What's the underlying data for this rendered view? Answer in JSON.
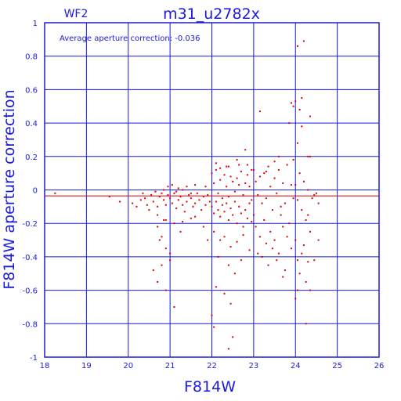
{
  "chart_data": {
    "type": "scatter",
    "panel_label": "WF2",
    "title": "m31_u2782x",
    "annotation": "Average aperture correction: -0.036",
    "xlabel": "F814W",
    "ylabel": "F814W aperture correction",
    "xlim": [
      18,
      26
    ],
    "ylim": [
      -1,
      1
    ],
    "xticks": [
      18,
      19,
      20,
      21,
      22,
      23,
      24,
      25,
      26
    ],
    "yticks": [
      -1,
      -0.8,
      -0.6,
      -0.4,
      -0.2,
      0,
      0.2,
      0.4,
      0.6,
      0.8,
      1
    ],
    "grid": true,
    "mean_line": -0.036,
    "colors": {
      "axes": "#1a1adc",
      "points": "#dd0000",
      "mean_line": "#dd0000"
    },
    "points": [
      [
        18.25,
        -0.02
      ],
      [
        19.55,
        -0.04
      ],
      [
        19.8,
        -0.07
      ],
      [
        20.1,
        -0.08
      ],
      [
        20.2,
        -0.1
      ],
      [
        20.3,
        -0.06
      ],
      [
        20.35,
        -0.02
      ],
      [
        20.4,
        -0.05
      ],
      [
        20.45,
        -0.09
      ],
      [
        20.5,
        -0.12
      ],
      [
        20.55,
        -0.03
      ],
      [
        20.6,
        -0.07
      ],
      [
        20.65,
        -0.01
      ],
      [
        20.7,
        -0.1
      ],
      [
        20.75,
        -0.04
      ],
      [
        20.7,
        -0.15
      ],
      [
        20.8,
        -0.02
      ],
      [
        20.85,
        -0.06
      ],
      [
        20.9,
        -0.09
      ],
      [
        20.95,
        -0.03
      ],
      [
        21.0,
        -0.05
      ],
      [
        21.05,
        -0.08
      ],
      [
        21.1,
        -0.02
      ],
      [
        21.15,
        -0.11
      ],
      [
        21.2,
        -0.06
      ],
      [
        21.25,
        -0.04
      ],
      [
        21.3,
        -0.09
      ],
      [
        21.35,
        -0.13
      ],
      [
        21.4,
        -0.07
      ],
      [
        21.45,
        -0.03
      ],
      [
        21.5,
        -0.05
      ],
      [
        21.55,
        -0.1
      ],
      [
        21.6,
        -0.08
      ],
      [
        21.65,
        -0.02
      ],
      [
        21.7,
        -0.06
      ],
      [
        21.75,
        -0.12
      ],
      [
        21.8,
        -0.04
      ],
      [
        21.85,
        -0.09
      ],
      [
        21.9,
        -0.03
      ],
      [
        21.95,
        -0.07
      ],
      [
        20.95,
        0.02
      ],
      [
        21.05,
        0.03
      ],
      [
        21.2,
        0.01
      ],
      [
        21.4,
        0.02
      ],
      [
        21.6,
        0.03
      ],
      [
        21.85,
        0.02
      ],
      [
        20.85,
        0.0
      ],
      [
        21.15,
        -0.01
      ],
      [
        21.3,
        0.0
      ],
      [
        21.5,
        -0.02
      ],
      [
        20.9,
        -0.18
      ],
      [
        21.1,
        -0.2
      ],
      [
        21.3,
        -0.19
      ],
      [
        21.5,
        -0.17
      ],
      [
        21.25,
        -0.25
      ],
      [
        20.7,
        -0.22
      ],
      [
        20.8,
        -0.28
      ],
      [
        20.9,
        -0.35
      ],
      [
        21.0,
        -0.42
      ],
      [
        20.75,
        -0.3
      ],
      [
        20.6,
        -0.48
      ],
      [
        20.8,
        -0.45
      ],
      [
        20.7,
        -0.55
      ],
      [
        20.9,
        -0.6
      ],
      [
        21.0,
        -0.38
      ],
      [
        21.1,
        -0.7
      ],
      [
        20.85,
        -0.18
      ],
      [
        21.6,
        -0.16
      ],
      [
        21.8,
        -0.22
      ],
      [
        21.9,
        -0.3
      ],
      [
        22.0,
        0.1
      ],
      [
        22.05,
        0.04
      ],
      [
        22.1,
        0.12
      ],
      [
        22.15,
        -0.02
      ],
      [
        22.2,
        0.06
      ],
      [
        22.25,
        -0.05
      ],
      [
        22.3,
        0.09
      ],
      [
        22.35,
        0.02
      ],
      [
        22.4,
        -0.04
      ],
      [
        22.45,
        0.08
      ],
      [
        22.5,
        0.05
      ],
      [
        22.55,
        -0.01
      ],
      [
        22.6,
        0.07
      ],
      [
        22.65,
        0.03
      ],
      [
        22.7,
        0.11
      ],
      [
        22.75,
        -0.03
      ],
      [
        22.8,
        0.04
      ],
      [
        22.85,
        0.09
      ],
      [
        22.9,
        0.02
      ],
      [
        22.95,
        -0.06
      ],
      [
        22.0,
        -0.1
      ],
      [
        22.05,
        -0.14
      ],
      [
        22.1,
        -0.07
      ],
      [
        22.15,
        -0.12
      ],
      [
        22.2,
        -0.16
      ],
      [
        22.25,
        -0.09
      ],
      [
        22.3,
        -0.13
      ],
      [
        22.35,
        -0.08
      ],
      [
        22.4,
        -0.18
      ],
      [
        22.45,
        -0.11
      ],
      [
        22.5,
        -0.15
      ],
      [
        22.55,
        -0.07
      ],
      [
        22.6,
        -0.2
      ],
      [
        22.65,
        -0.1
      ],
      [
        22.7,
        -0.14
      ],
      [
        22.75,
        -0.22
      ],
      [
        22.8,
        -0.12
      ],
      [
        22.85,
        -0.17
      ],
      [
        22.9,
        -0.08
      ],
      [
        22.95,
        -0.19
      ],
      [
        22.05,
        -0.25
      ],
      [
        22.2,
        -0.3
      ],
      [
        22.3,
        -0.28
      ],
      [
        22.45,
        -0.34
      ],
      [
        22.6,
        -0.31
      ],
      [
        22.75,
        -0.27
      ],
      [
        22.9,
        -0.36
      ],
      [
        22.15,
        -0.4
      ],
      [
        22.4,
        -0.45
      ],
      [
        22.55,
        -0.5
      ],
      [
        22.3,
        -0.62
      ],
      [
        22.45,
        -0.68
      ],
      [
        22.0,
        -0.75
      ],
      [
        22.05,
        -0.82
      ],
      [
        22.5,
        -0.88
      ],
      [
        22.4,
        -0.95
      ],
      [
        22.1,
        -0.58
      ],
      [
        22.7,
        -0.42
      ],
      [
        22.85,
        0.15
      ],
      [
        22.6,
        0.18
      ],
      [
        22.4,
        0.14
      ],
      [
        22.2,
        0.13
      ],
      [
        22.8,
        0.24
      ],
      [
        22.95,
        0.12
      ],
      [
        22.1,
        0.16
      ],
      [
        22.65,
        0.15
      ],
      [
        22.35,
        0.14
      ],
      [
        23.0,
        0.12
      ],
      [
        23.05,
        0.05
      ],
      [
        23.1,
        -0.03
      ],
      [
        23.15,
        0.08
      ],
      [
        23.2,
        -0.08
      ],
      [
        23.25,
        0.1
      ],
      [
        23.3,
        -0.05
      ],
      [
        23.35,
        0.14
      ],
      [
        23.4,
        0.02
      ],
      [
        23.45,
        -0.12
      ],
      [
        23.5,
        0.07
      ],
      [
        23.55,
        -0.02
      ],
      [
        23.6,
        0.12
      ],
      [
        23.65,
        -0.15
      ],
      [
        23.7,
        0.04
      ],
      [
        23.75,
        -0.08
      ],
      [
        23.8,
        0.15
      ],
      [
        23.85,
        -0.2
      ],
      [
        23.9,
        0.03
      ],
      [
        23.95,
        -0.05
      ],
      [
        23.0,
        -0.15
      ],
      [
        23.05,
        -0.22
      ],
      [
        23.15,
        -0.28
      ],
      [
        23.25,
        -0.18
      ],
      [
        23.3,
        -0.32
      ],
      [
        23.4,
        -0.25
      ],
      [
        23.5,
        -0.3
      ],
      [
        23.6,
        -0.38
      ],
      [
        23.7,
        -0.22
      ],
      [
        23.8,
        -0.28
      ],
      [
        23.2,
        -0.4
      ],
      [
        23.35,
        -0.45
      ],
      [
        23.55,
        -0.42
      ],
      [
        23.75,
        -0.48
      ],
      [
        23.7,
        -0.52
      ],
      [
        23.9,
        -0.35
      ],
      [
        23.15,
        0.47
      ],
      [
        23.5,
        0.17
      ],
      [
        23.6,
        0.2
      ],
      [
        23.3,
        0.11
      ],
      [
        23.1,
        -0.38
      ],
      [
        23.45,
        -0.35
      ],
      [
        23.65,
        -0.1
      ],
      [
        24.0,
        0.03
      ],
      [
        24.05,
        -0.06
      ],
      [
        24.1,
        0.1
      ],
      [
        24.15,
        -0.12
      ],
      [
        24.2,
        0.05
      ],
      [
        24.25,
        -0.18
      ],
      [
        24.3,
        0.0
      ],
      [
        24.35,
        -0.25
      ],
      [
        24.4,
        -0.05
      ],
      [
        24.5,
        -0.02
      ],
      [
        24.0,
        -0.3
      ],
      [
        24.05,
        -0.42
      ],
      [
        24.1,
        -0.5
      ],
      [
        24.15,
        -0.38
      ],
      [
        24.2,
        -0.33
      ],
      [
        24.25,
        -0.55
      ],
      [
        24.3,
        -0.43
      ],
      [
        24.35,
        -0.6
      ],
      [
        24.05,
        -0.6
      ],
      [
        24.55,
        -0.3
      ],
      [
        23.85,
        0.4
      ],
      [
        23.95,
        0.5
      ],
      [
        24.0,
        0.53
      ],
      [
        23.9,
        0.52
      ],
      [
        24.15,
        0.55
      ],
      [
        24.35,
        0.44
      ],
      [
        24.1,
        0.48
      ],
      [
        24.05,
        0.28
      ],
      [
        24.15,
        0.38
      ],
      [
        24.35,
        0.2
      ],
      [
        23.95,
        0.18
      ],
      [
        24.05,
        0.86
      ],
      [
        24.3,
        0.2
      ],
      [
        24.2,
        0.89
      ],
      [
        24.25,
        -0.8
      ],
      [
        24.0,
        -0.65
      ],
      [
        24.45,
        -0.42
      ],
      [
        24.3,
        -0.15
      ],
      [
        24.55,
        -0.08
      ],
      [
        24.45,
        -0.03
      ]
    ]
  }
}
